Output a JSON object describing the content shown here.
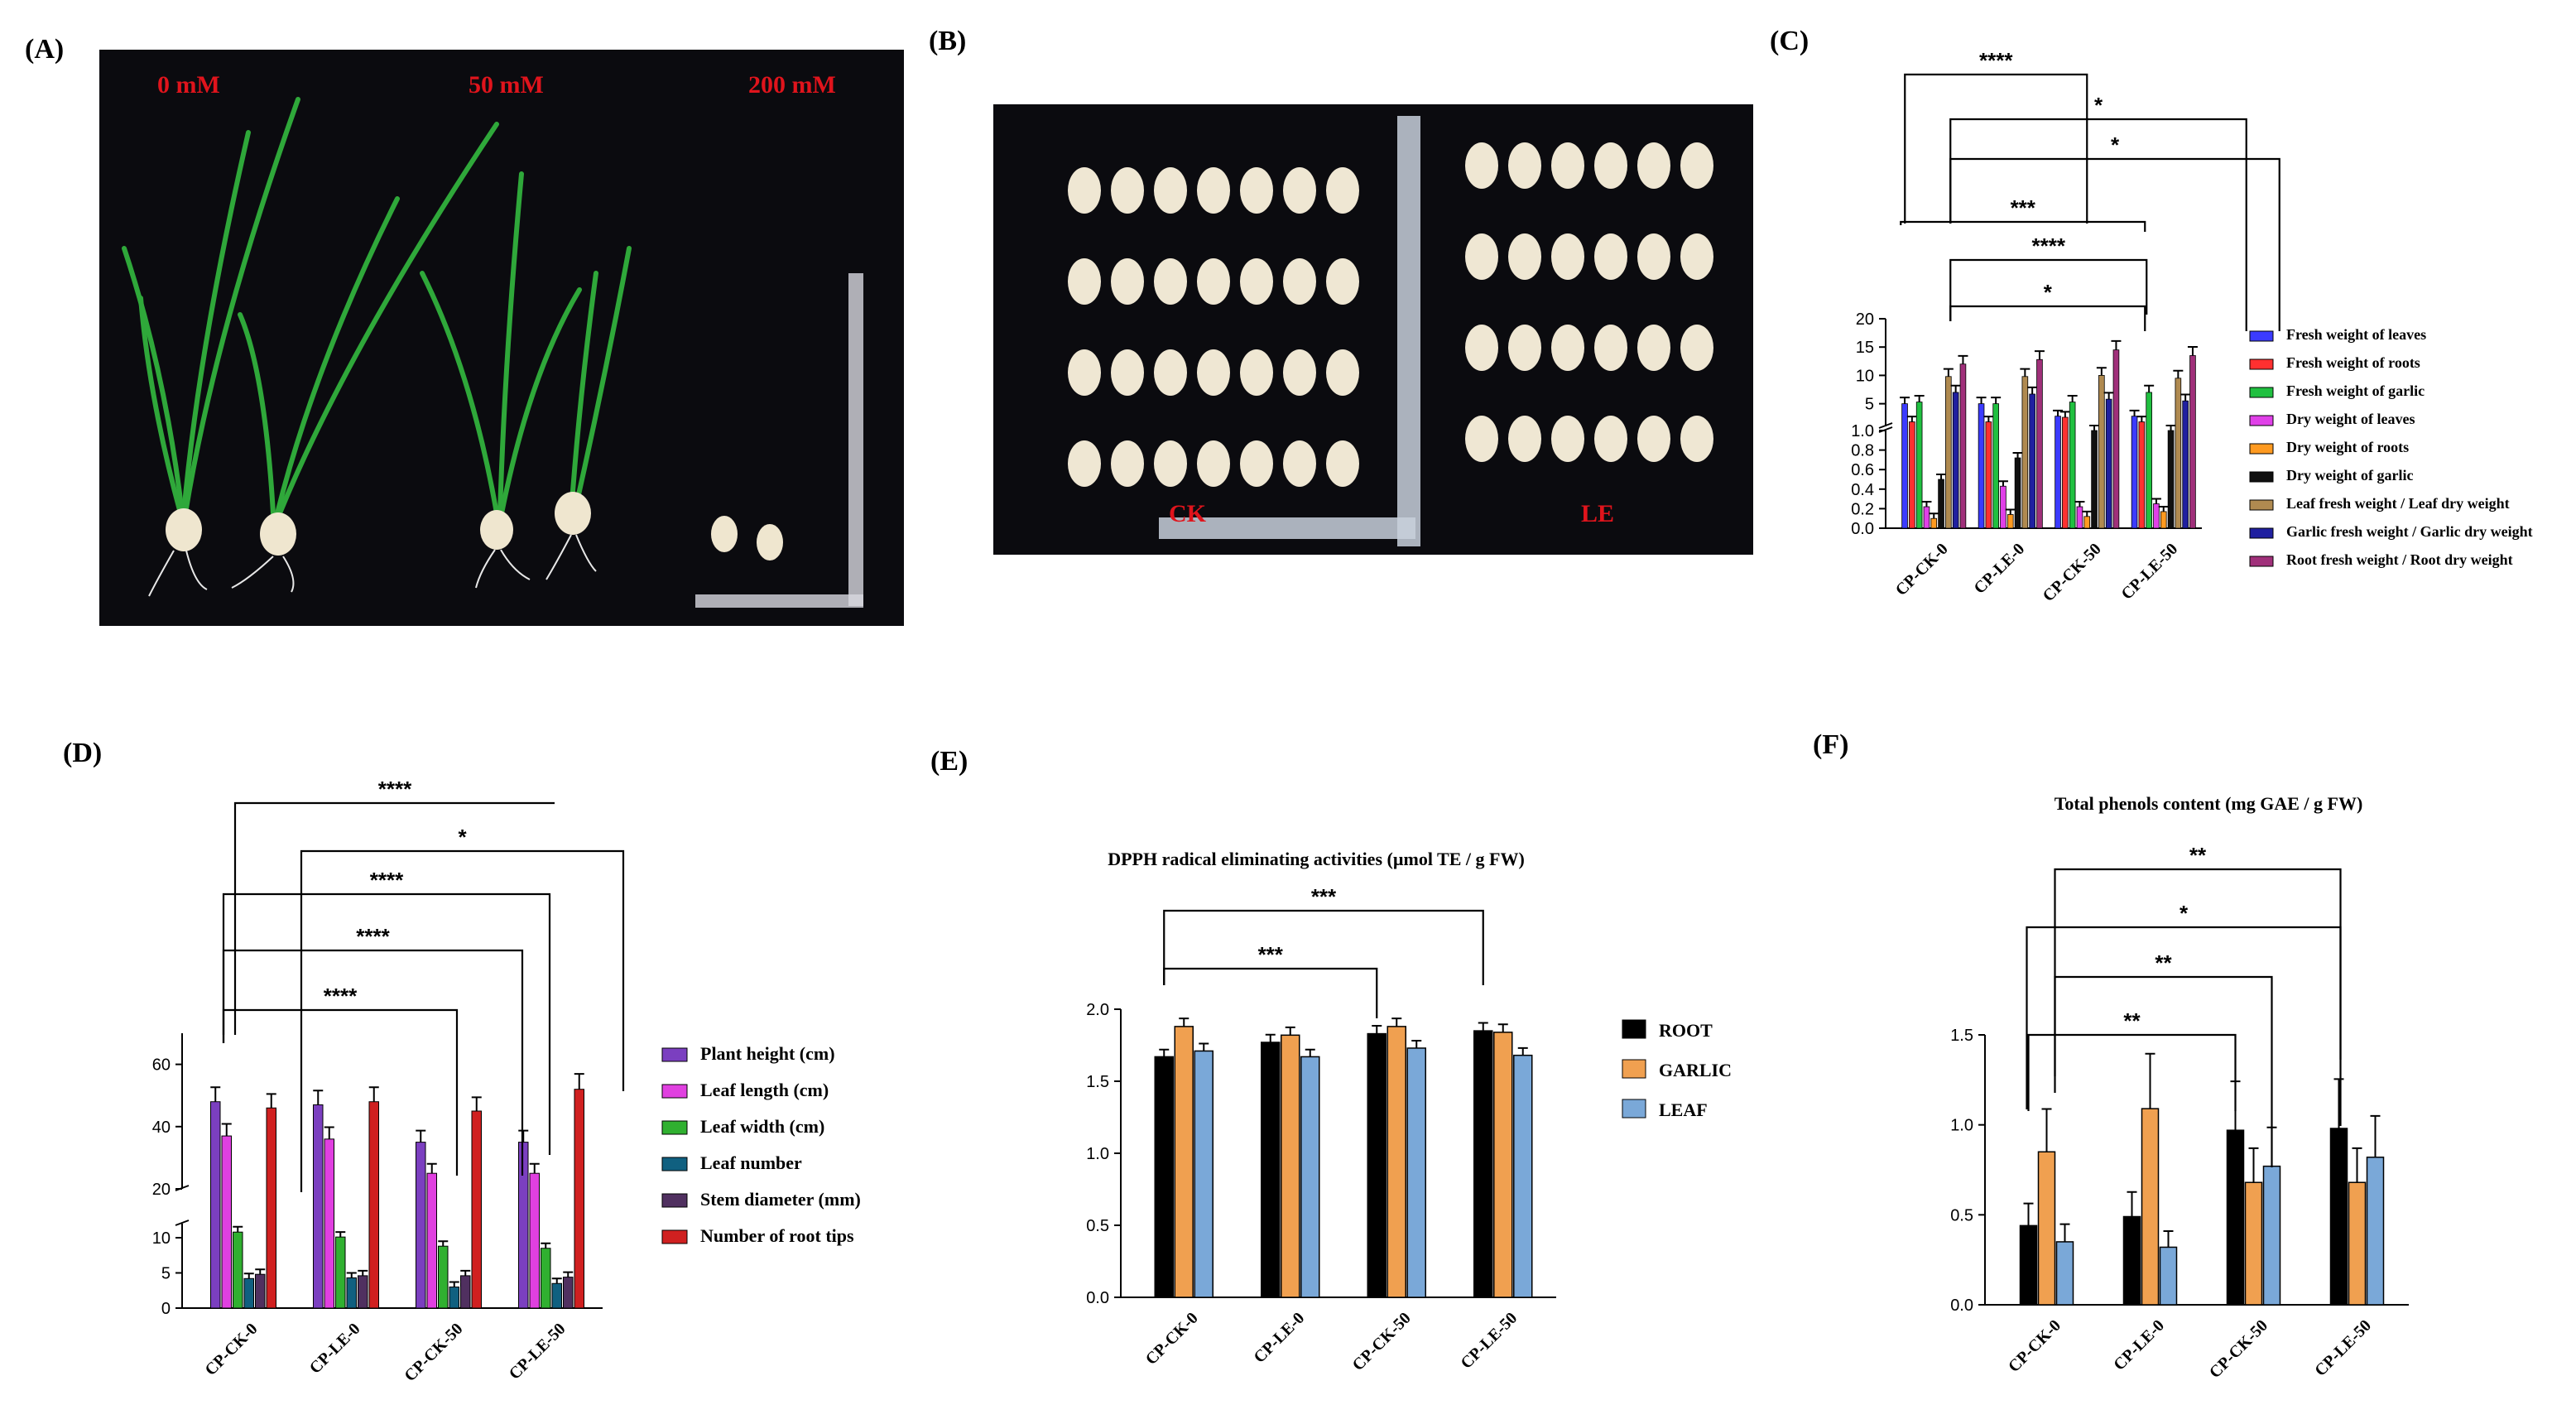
{
  "panel_labels": {
    "A": "(A)",
    "B": "(B)",
    "C": "(C)",
    "D": "(D)",
    "E": "(E)",
    "F": "(F)"
  },
  "photo_a": {
    "labels": [
      "0 mM",
      "50 mM",
      "200 mM"
    ]
  },
  "photo_b": {
    "labels": [
      "CK",
      "LE"
    ]
  },
  "colors": {
    "photo_bg": "#0b0b0f",
    "label_red": "#e0141c"
  },
  "chart_data": [
    {
      "id": "C",
      "type": "bar",
      "title": "",
      "categories": [
        "CP-CK-0",
        "CP-LE-0",
        "CP-CK-50",
        "CP-LE-50"
      ],
      "broken_axis": true,
      "ylim_lower": [
        0,
        1.0
      ],
      "ylim_upper": [
        1.0,
        20
      ],
      "yticks_lower": [
        "0.0",
        "0.2",
        "0.4",
        "0.6",
        "0.8",
        "1.0"
      ],
      "yticks_upper": [
        "5",
        "10",
        "15",
        "20"
      ],
      "series": [
        {
          "name": "Fresh weight of leaves",
          "color": "#3b3bff",
          "values": [
            5.0,
            5.0,
            2.8,
            2.8
          ]
        },
        {
          "name": "Fresh weight of roots",
          "color": "#ff3030",
          "values": [
            1.8,
            1.8,
            2.6,
            1.8
          ]
        },
        {
          "name": "Fresh weight of garlic",
          "color": "#20c040",
          "values": [
            5.3,
            5.0,
            5.3,
            7.0
          ]
        },
        {
          "name": "Dry weight of leaves",
          "color": "#e040e8",
          "values": [
            0.22,
            0.43,
            0.22,
            0.25
          ]
        },
        {
          "name": "Dry weight of roots",
          "color": "#ff9a20",
          "values": [
            0.1,
            0.14,
            0.12,
            0.17
          ]
        },
        {
          "name": "Dry weight of garlic",
          "color": "#101010",
          "values": [
            0.5,
            0.72,
            1.0,
            1.0
          ]
        },
        {
          "name": "Leaf fresh weight / Leaf dry weight",
          "color": "#b08a50",
          "values": [
            9.8,
            9.8,
            10.0,
            9.5
          ]
        },
        {
          "name": "Garlic fresh weight / Garlic dry weight",
          "color": "#2020a0",
          "values": [
            7.0,
            6.7,
            5.8,
            5.5
          ]
        },
        {
          "name": "Root fresh weight / Root dry weight",
          "color": "#a0307a",
          "values": [
            12.0,
            12.8,
            14.5,
            13.5
          ]
        }
      ],
      "significance": [
        "****",
        "*",
        "*",
        "***",
        "****",
        "*"
      ]
    },
    {
      "id": "D",
      "type": "bar",
      "title": "",
      "categories": [
        "CP-CK-0",
        "CP-LE-0",
        "CP-CK-50",
        "CP-LE-50"
      ],
      "broken_axis": true,
      "ylim_lower": [
        0,
        12
      ],
      "ylim_upper": [
        20,
        70
      ],
      "yticks_lower": [
        "0",
        "5",
        "10"
      ],
      "yticks_upper": [
        "20",
        "40",
        "60"
      ],
      "series": [
        {
          "name": "Plant height (cm)",
          "color": "#7b3fc0",
          "values": [
            48,
            47,
            35,
            35
          ]
        },
        {
          "name": "Leaf length (cm)",
          "color": "#e040e0",
          "values": [
            37,
            36,
            25,
            25
          ]
        },
        {
          "name": "Leaf width (cm)",
          "color": "#30b030",
          "values": [
            10.8,
            10.1,
            8.8,
            8.5
          ]
        },
        {
          "name": "Leaf number",
          "color": "#106080",
          "values": [
            4.2,
            4.3,
            3.0,
            3.5
          ]
        },
        {
          "name": "Stem diameter (mm)",
          "color": "#503060",
          "values": [
            4.8,
            4.6,
            4.6,
            4.4
          ]
        },
        {
          "name": "Number of root tips",
          "color": "#d02020",
          "values": [
            46,
            48,
            45,
            52
          ]
        }
      ],
      "significance": [
        "****",
        "*",
        "****",
        "****",
        "****"
      ]
    },
    {
      "id": "E",
      "type": "bar",
      "title": "DPPH radical eliminating activities (µmol TE / g FW)",
      "categories": [
        "CP-CK-0",
        "CP-LE-0",
        "CP-CK-50",
        "CP-LE-50"
      ],
      "ylim": [
        0,
        2.0
      ],
      "yticks": [
        "0.0",
        "0.5",
        "1.0",
        "1.5",
        "2.0"
      ],
      "series": [
        {
          "name": "ROOT",
          "color": "#000000",
          "values": [
            1.67,
            1.77,
            1.83,
            1.85
          ]
        },
        {
          "name": "GARLIC",
          "color": "#f0a050",
          "values": [
            1.88,
            1.82,
            1.88,
            1.84
          ]
        },
        {
          "name": "LEAF",
          "color": "#7aa8d8",
          "values": [
            1.71,
            1.67,
            1.73,
            1.68
          ]
        }
      ],
      "significance": [
        "***",
        "***"
      ]
    },
    {
      "id": "F",
      "type": "bar",
      "title": "Total phenols content  (mg GAE / g FW)",
      "categories": [
        "CP-CK-0",
        "CP-LE-0",
        "CP-CK-50",
        "CP-LE-50"
      ],
      "ylim": [
        0,
        1.5
      ],
      "yticks": [
        "0.0",
        "0.5",
        "1.0",
        "1.5"
      ],
      "series": [
        {
          "name": "ROOT",
          "color": "#000000",
          "values": [
            0.44,
            0.49,
            0.97,
            0.98
          ]
        },
        {
          "name": "GARLIC",
          "color": "#f0a050",
          "values": [
            0.85,
            1.09,
            0.68,
            0.68
          ]
        },
        {
          "name": "LEAF",
          "color": "#7aa8d8",
          "values": [
            0.35,
            0.32,
            0.77,
            0.82
          ]
        }
      ],
      "significance": [
        "**",
        "**",
        "*",
        "**"
      ]
    }
  ]
}
